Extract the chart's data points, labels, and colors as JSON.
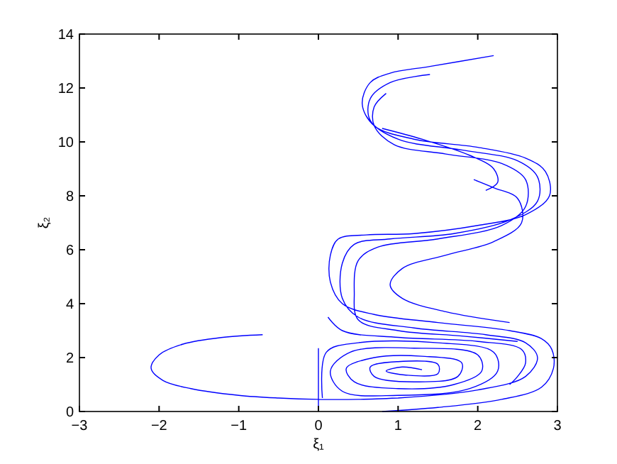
{
  "chart_data": {
    "type": "line",
    "xlabel": "ξ₁",
    "ylabel": "ξ₂",
    "xlim": [
      -3,
      3
    ],
    "ylim": [
      0,
      14
    ],
    "xticks": [
      -3,
      -2,
      -1,
      0,
      1,
      2,
      3
    ],
    "yticks": [
      0,
      2,
      4,
      6,
      8,
      10,
      12,
      14
    ],
    "grid": false,
    "marker": "none",
    "line_style": "solid",
    "series": [
      {
        "color": "#0000ff",
        "x": [
          -0.7,
          -1.2,
          -1.7,
          -2.0,
          -2.1,
          -1.95,
          -1.6,
          -1.0,
          -0.5,
          0,
          0.5,
          1.0,
          null,
          0,
          0,
          null,
          0.8,
          1.5,
          2.3,
          2.8,
          2.95,
          2.93,
          2.8,
          2.4,
          1.5,
          0.7,
          0.3,
          0.15,
          0.15,
          0.25,
          0.6,
          1.2,
          2.0,
          2.6,
          2.9,
          2.85,
          2.6,
          2.0,
          1.2,
          0.7,
          0.55,
          0.65,
          0.9,
          1.4,
          2.2,
          null,
          1.0,
          2.0,
          2.6,
          2.75,
          2.6,
          2.1,
          1.2,
          0.5,
          0.3,
          0.3,
          0.45,
          0.9,
          1.7,
          2.4,
          2.75,
          2.75,
          2.5,
          1.8,
          1.0,
          0.65,
          0.65,
          0.9,
          1.4,
          null,
          2.5,
          1.8,
          1.0,
          0.5,
          0.45,
          0.5,
          0.75,
          1.5,
          2.3,
          2.6,
          2.6,
          2.3,
          1.6,
          0.95,
          0.7,
          0.7,
          0.85,
          null,
          0.12,
          0.3,
          1.0,
          2.0,
          2.55,
          2.6,
          2.5,
          2.4,
          null,
          2.4,
          1.6,
          1.05,
          0.9,
          1.05,
          1.6,
          2.2,
          2.55,
          2.5,
          2.2,
          1.95,
          null,
          0.8,
          1.3,
          1.9,
          2.2,
          2.25,
          2.1,
          null,
          0.05,
          0.1,
          0.5,
          1.5,
          2.2,
          2.25,
          1.9,
          1.0,
          0.3,
          0.15,
          0.4,
          1.2,
          2.0,
          2.05,
          1.7,
          1.0,
          0.45,
          0.35,
          0.7,
          1.3,
          1.8,
          1.75,
          1.2,
          0.7,
          0.65,
          1.0,
          1.5,
          1.5,
          1.1,
          0.85,
          1.05,
          1.3
        ],
        "values": [
          2.85,
          2.75,
          2.5,
          2.1,
          1.6,
          1.15,
          0.85,
          0.6,
          0.5,
          0.45,
          0.45,
          0.5,
          null,
          0,
          2.35,
          null,
          0,
          0.15,
          0.45,
          0.9,
          1.6,
          2.3,
          2.7,
          3.0,
          3.3,
          3.6,
          4.0,
          4.8,
          5.8,
          6.4,
          6.55,
          6.6,
          6.9,
          7.3,
          8.0,
          8.9,
          9.4,
          9.8,
          10.1,
          10.6,
          11.4,
          12.2,
          12.55,
          12.8,
          13.2,
          null,
          0.5,
          0.8,
          1.3,
          2.0,
          2.55,
          2.85,
          3.1,
          3.5,
          4.2,
          5.5,
          6.2,
          6.4,
          6.6,
          7.1,
          7.8,
          8.7,
          9.3,
          9.7,
          10.1,
          10.8,
          11.6,
          12.2,
          12.5,
          null,
          2.6,
          2.8,
          3.0,
          3.4,
          4.4,
          5.6,
          6.1,
          6.4,
          6.9,
          7.6,
          8.6,
          9.2,
          9.55,
          9.9,
          10.6,
          11.3,
          11.8,
          null,
          3.5,
          3.0,
          2.75,
          2.6,
          2.3,
          1.8,
          1.3,
          1.0,
          null,
          3.3,
          3.7,
          4.2,
          4.7,
          5.3,
          5.8,
          6.3,
          7.0,
          7.9,
          8.3,
          8.6,
          null,
          10.5,
          10.1,
          9.5,
          9.0,
          8.5,
          8.2,
          null,
          0.5,
          2.2,
          2.55,
          2.55,
          2.2,
          1.5,
          0.85,
          0.6,
          0.75,
          1.5,
          2.2,
          2.35,
          2.1,
          1.5,
          1.0,
          0.85,
          1.1,
          1.6,
          2.0,
          2.05,
          1.8,
          1.3,
          1.1,
          1.3,
          1.65,
          1.85,
          1.75,
          1.4,
          1.35,
          1.5,
          1.65,
          1.55
        ]
      }
    ]
  }
}
